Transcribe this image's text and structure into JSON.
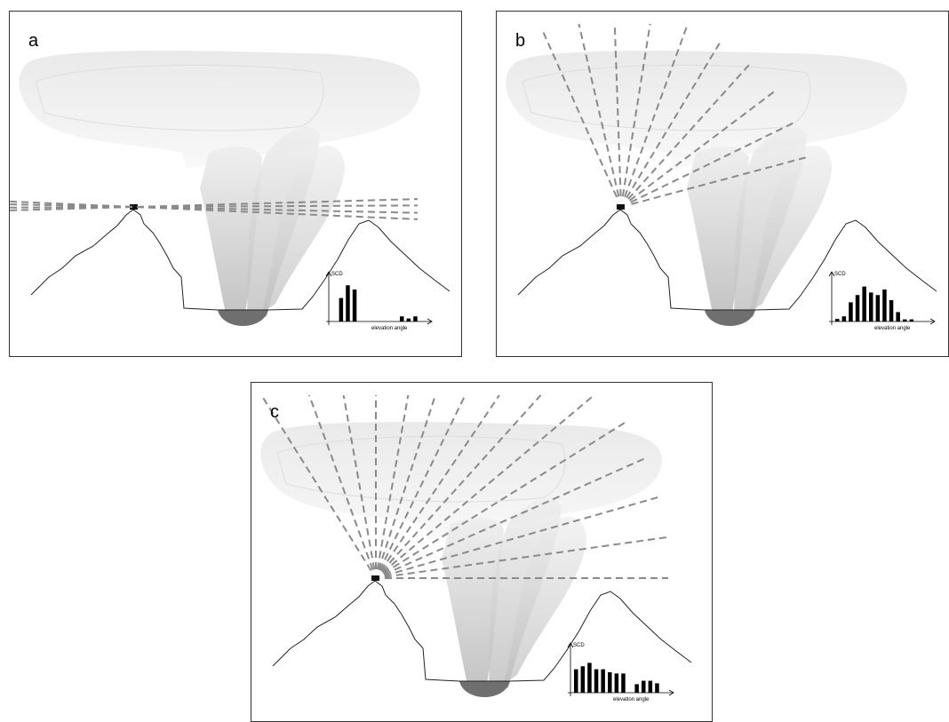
{
  "panels": [
    {
      "label": "a",
      "chart": {
        "y_label": "SCD",
        "x_label": "elevation angle"
      }
    },
    {
      "label": "b",
      "chart": {
        "y_label": "SCD",
        "x_label": "elevation angle"
      }
    },
    {
      "label": "c",
      "chart": {
        "y_label": "SCD",
        "x_label": "elevation angle"
      }
    }
  ]
}
